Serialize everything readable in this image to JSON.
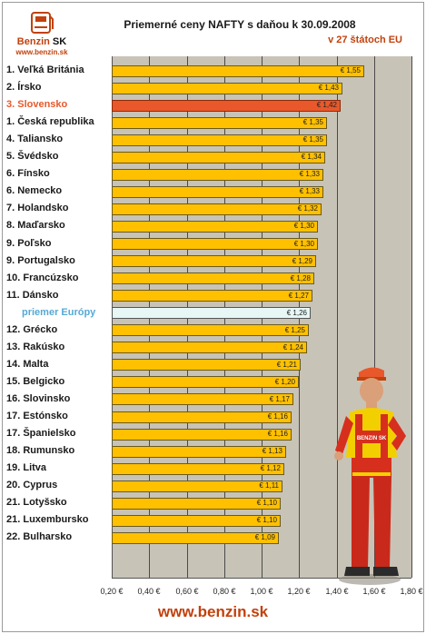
{
  "logo": {
    "brand_text": "Benzin",
    "brand_suffix": "SK",
    "url_text": "www.benzin.sk"
  },
  "header": {
    "title": "Priemerné ceny NAFTY s daňou k 30.09.2008",
    "subtitle": "v 27 štátoch EU"
  },
  "footer": {
    "url": "www.benzin.sk"
  },
  "mascot": {
    "shirt_text": "BENZIN SK"
  },
  "colors": {
    "bar": "#ffc000",
    "highlight": "#e8582a",
    "average": "#e6f7f6",
    "plot_background": "#c8c3b7",
    "brand": "#c2410c"
  },
  "chart_data": {
    "type": "bar",
    "orientation": "horizontal",
    "title": "Priemerné ceny NAFTY s daňou k 30.09.2008",
    "subtitle": "v 27 štátoch EU",
    "xlim": [
      0.2,
      1.8
    ],
    "x_ticks": [
      "0,20 €",
      "0,40 €",
      "0,60 €",
      "0,80 €",
      "1,00 €",
      "1,20 €",
      "1,40 €",
      "1,60 €",
      "1,80 €"
    ],
    "grid": true,
    "categories": [
      "1. Veľká Británia",
      "2. Írsko",
      "3. Slovensko",
      "1. Česká republika",
      "4. Taliansko",
      "5. Švédsko",
      "6. Fínsko",
      "6. Nemecko",
      "7. Holandsko",
      "8. Maďarsko",
      "9. Poľsko",
      "9. Portugalsko",
      "10. Francúzsko",
      "11. Dánsko",
      "priemer Európy",
      "12. Grécko",
      "13. Rakúsko",
      "14. Malta",
      "15. Belgicko",
      "16. Slovinsko",
      "17. Estónsko",
      "17. Španielsko",
      "18. Rumunsko",
      "19. Litva",
      "20. Cyprus",
      "21. Lotyšsko",
      "21. Luxembursko",
      "22. Bulharsko"
    ],
    "values": [
      1.55,
      1.43,
      1.42,
      1.35,
      1.35,
      1.34,
      1.33,
      1.33,
      1.32,
      1.3,
      1.3,
      1.29,
      1.28,
      1.27,
      1.26,
      1.25,
      1.24,
      1.21,
      1.2,
      1.17,
      1.16,
      1.16,
      1.13,
      1.12,
      1.11,
      1.1,
      1.1,
      1.09
    ],
    "value_labels": [
      "€ 1,55",
      "€ 1,43",
      "€ 1,42",
      "€ 1,35",
      "€ 1,35",
      "€ 1,34",
      "€ 1,33",
      "€ 1,33",
      "€ 1,32",
      "€ 1,30",
      "€ 1,30",
      "€ 1,29",
      "€ 1,28",
      "€ 1,27",
      "€ 1,26",
      "€ 1,25",
      "€ 1,24",
      "€ 1,21",
      "€ 1,20",
      "€ 1,17",
      "€ 1,16",
      "€ 1,16",
      "€ 1,13",
      "€ 1,12",
      "€ 1,11",
      "€ 1,10",
      "€ 1,10",
      "€ 1,09"
    ],
    "highlight_index": 2,
    "average_index": 14
  }
}
